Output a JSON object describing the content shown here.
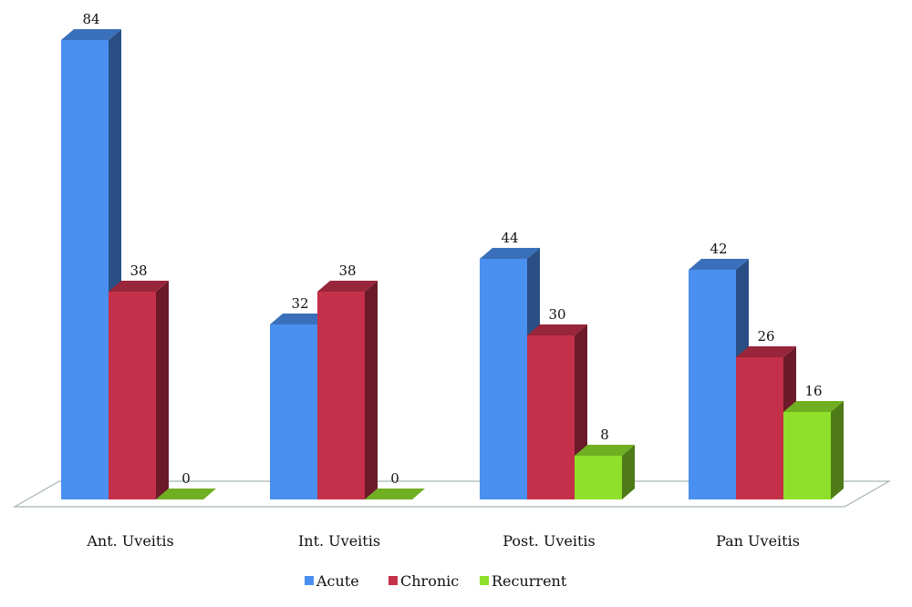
{
  "chart_data": {
    "type": "bar",
    "title": "",
    "xlabel": "",
    "ylabel": "",
    "categories": [
      "Ant. Uveitis",
      "Int. Uveitis",
      "Post. Uveitis",
      "Pan Uveitis"
    ],
    "series": [
      {
        "name": "Acute",
        "values": [
          84,
          32,
          44,
          42
        ],
        "color": "#4a90f0"
      },
      {
        "name": "Chronic",
        "values": [
          38,
          38,
          30,
          26
        ],
        "color": "#c4304a"
      },
      {
        "name": "Recurrent",
        "values": [
          0,
          0,
          8,
          16
        ],
        "color": "#8ee02a"
      }
    ],
    "ylim": [
      0,
      84
    ],
    "grid": false,
    "legend": "bottom",
    "style": "3d-column"
  }
}
